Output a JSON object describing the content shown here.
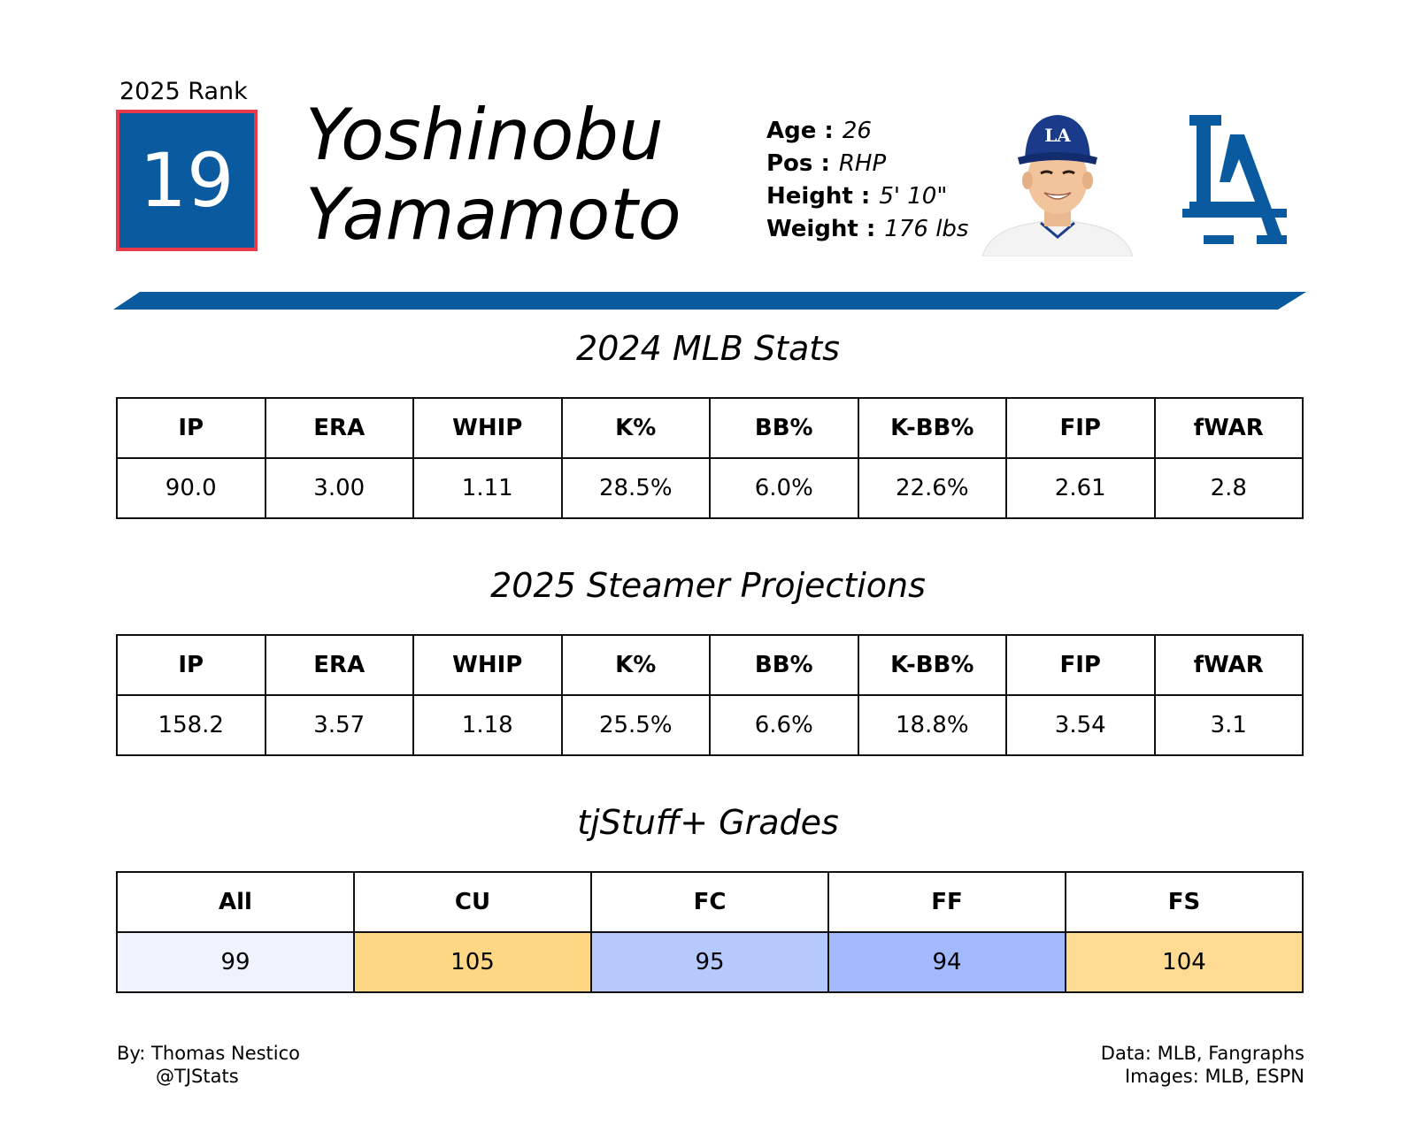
{
  "header": {
    "rank_label": "2025 Rank",
    "rank": "19",
    "first_name": "Yoshinobu",
    "last_name": "Yamamoto",
    "bio": [
      {
        "key": "Age :",
        "value": "26"
      },
      {
        "key": "Pos :",
        "value": "RHP"
      },
      {
        "key": "Height :",
        "value": "5' 10\""
      },
      {
        "key": "Weight :",
        "value": "176 lbs"
      }
    ],
    "team_logo_text": "LA"
  },
  "colors": {
    "brand_blue": "#0a5aa0",
    "rank_border": "#e8394a"
  },
  "mlb_stats": {
    "title": "2024 MLB Stats",
    "headers": [
      "IP",
      "ERA",
      "WHIP",
      "K%",
      "BB%",
      "K-BB%",
      "FIP",
      "fWAR"
    ],
    "values": [
      "90.0",
      "3.00",
      "1.11",
      "28.5%",
      "6.0%",
      "22.6%",
      "2.61",
      "2.8"
    ]
  },
  "projections": {
    "title": "2025 Steamer Projections",
    "headers": [
      "IP",
      "ERA",
      "WHIP",
      "K%",
      "BB%",
      "K-BB%",
      "FIP",
      "fWAR"
    ],
    "values": [
      "158.2",
      "3.57",
      "1.18",
      "25.5%",
      "6.6%",
      "18.8%",
      "3.54",
      "3.1"
    ]
  },
  "grades": {
    "title": "tjStuff+ Grades",
    "headers": [
      "All",
      "CU",
      "FC",
      "FF",
      "FS"
    ],
    "values": [
      "99",
      "105",
      "95",
      "94",
      "104"
    ],
    "cell_colors": [
      "#eef3fe",
      "#fdd784",
      "#b5c9fc",
      "#a2b9fb",
      "#fddb92"
    ]
  },
  "footer": {
    "author": "By: Thomas Nestico",
    "handle": "@TJStats",
    "data_source": "Data: MLB, Fangraphs",
    "image_source": "Images: MLB, ESPN"
  }
}
